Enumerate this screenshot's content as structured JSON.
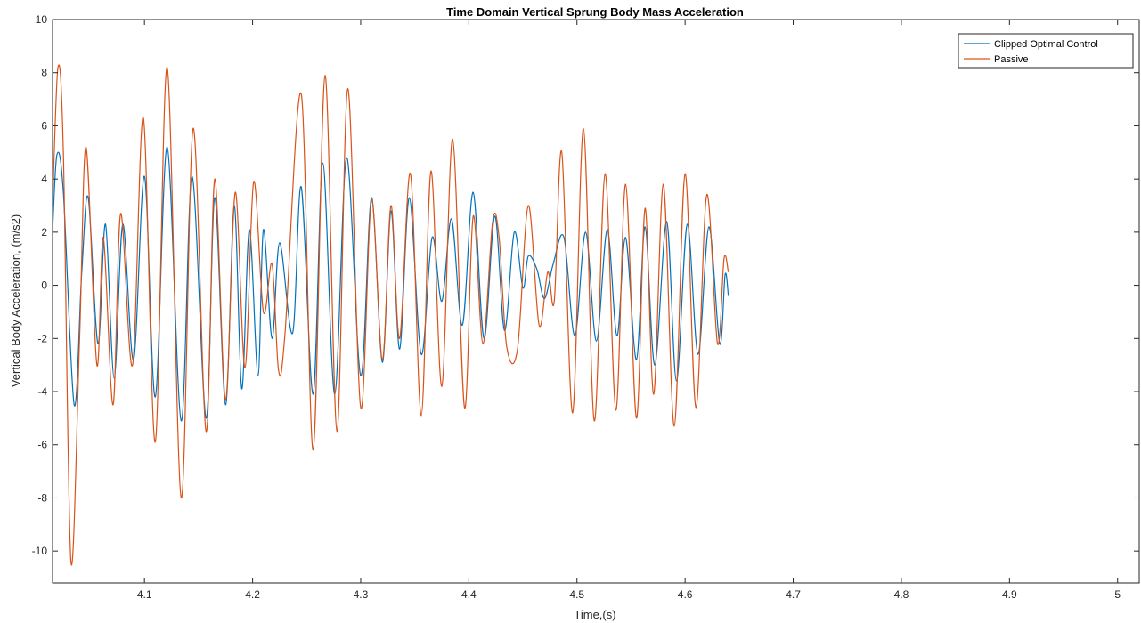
{
  "chart_data": {
    "type": "line",
    "title": "Time Domain Vertical Sprung Body Mass Acceleration",
    "xlabel": "Time,(s)",
    "ylabel": "Vertical Body Acceleration, (m/s2)",
    "xlim": [
      4.015,
      5.02
    ],
    "ylim": [
      -11.2,
      10
    ],
    "x_ticks": [
      4.1,
      4.2,
      4.3,
      4.4,
      4.5,
      4.6,
      4.7,
      4.8,
      4.9,
      5
    ],
    "x_tick_labels": [
      "4.1",
      "4.2",
      "4.3",
      "4.4",
      "4.5",
      "4.6",
      "4.7",
      "4.8",
      "4.9",
      "5"
    ],
    "y_ticks": [
      -10,
      -8,
      -6,
      -4,
      -2,
      0,
      2,
      4,
      6,
      8,
      10
    ],
    "y_tick_labels": [
      "-10",
      "-8",
      "-6",
      "-4",
      "-2",
      "0",
      "2",
      "4",
      "6",
      "8",
      "10"
    ],
    "grid": false,
    "legend_position": "top-right",
    "colors": {
      "clipped": "#0072bd",
      "passive": "#d95319"
    },
    "series": [
      {
        "name": "Clipped Optimal Control",
        "color": "#0072bd",
        "points": [
          [
            4.015,
            2.0
          ],
          [
            4.019,
            4.9
          ],
          [
            4.025,
            3.5
          ],
          [
            4.035,
            -4.5
          ],
          [
            4.042,
            0.5
          ],
          [
            4.048,
            3.3
          ],
          [
            4.057,
            -2.2
          ],
          [
            4.064,
            2.3
          ],
          [
            4.072,
            -3.5
          ],
          [
            4.08,
            2.3
          ],
          [
            4.09,
            -2.8
          ],
          [
            4.1,
            4.1
          ],
          [
            4.11,
            -4.2
          ],
          [
            4.121,
            5.2
          ],
          [
            4.134,
            -5.1
          ],
          [
            4.144,
            4.1
          ],
          [
            4.157,
            -5.0
          ],
          [
            4.165,
            3.3
          ],
          [
            4.175,
            -4.5
          ],
          [
            4.183,
            3.0
          ],
          [
            4.19,
            -3.9
          ],
          [
            4.197,
            2.1
          ],
          [
            4.205,
            -3.4
          ],
          [
            4.21,
            2.1
          ],
          [
            4.218,
            -2.0
          ],
          [
            4.225,
            1.6
          ],
          [
            4.237,
            -1.8
          ],
          [
            4.245,
            3.7
          ],
          [
            4.256,
            -4.1
          ],
          [
            4.265,
            4.6
          ],
          [
            4.276,
            -4.1
          ],
          [
            4.287,
            4.8
          ],
          [
            4.3,
            -3.4
          ],
          [
            4.31,
            3.3
          ],
          [
            4.32,
            -2.9
          ],
          [
            4.328,
            2.8
          ],
          [
            4.336,
            -2.4
          ],
          [
            4.345,
            3.3
          ],
          [
            4.356,
            -2.6
          ],
          [
            4.366,
            1.8
          ],
          [
            4.375,
            -0.6
          ],
          [
            4.384,
            2.5
          ],
          [
            4.394,
            -1.5
          ],
          [
            4.404,
            3.5
          ],
          [
            4.414,
            -2.0
          ],
          [
            4.424,
            2.6
          ],
          [
            4.433,
            -1.7
          ],
          [
            4.442,
            2.0
          ],
          [
            4.45,
            -0.1
          ],
          [
            4.455,
            1.1
          ],
          [
            4.463,
            0.6
          ],
          [
            4.47,
            -0.5
          ],
          [
            4.478,
            0.8
          ],
          [
            4.488,
            1.8
          ],
          [
            4.498,
            -1.9
          ],
          [
            4.508,
            2.0
          ],
          [
            4.518,
            -2.1
          ],
          [
            4.528,
            2.1
          ],
          [
            4.537,
            -1.9
          ],
          [
            4.545,
            1.8
          ],
          [
            4.555,
            -2.8
          ],
          [
            4.563,
            2.2
          ],
          [
            4.572,
            -3.0
          ],
          [
            4.583,
            2.4
          ],
          [
            4.592,
            -3.6
          ],
          [
            4.602,
            2.3
          ],
          [
            4.612,
            -2.6
          ],
          [
            4.622,
            2.2
          ],
          [
            4.632,
            -2.2
          ],
          [
            4.637,
            0.4
          ],
          [
            4.64,
            -0.4
          ]
        ]
      },
      {
        "name": "Passive",
        "color": "#d95319",
        "points": [
          [
            4.015,
            3.0
          ],
          [
            4.02,
            8.2
          ],
          [
            4.025,
            5.0
          ],
          [
            4.032,
            -10.4
          ],
          [
            4.04,
            -2.0
          ],
          [
            4.046,
            5.2
          ],
          [
            4.056,
            -3.0
          ],
          [
            4.062,
            1.8
          ],
          [
            4.071,
            -4.5
          ],
          [
            4.078,
            2.7
          ],
          [
            4.089,
            -3.0
          ],
          [
            4.099,
            6.3
          ],
          [
            4.11,
            -5.9
          ],
          [
            4.121,
            8.2
          ],
          [
            4.134,
            -8.0
          ],
          [
            4.145,
            5.9
          ],
          [
            4.157,
            -5.5
          ],
          [
            4.165,
            4.0
          ],
          [
            4.175,
            -4.3
          ],
          [
            4.184,
            3.5
          ],
          [
            4.193,
            -3.1
          ],
          [
            4.201,
            3.9
          ],
          [
            4.21,
            -1.0
          ],
          [
            4.218,
            0.8
          ],
          [
            4.224,
            -3.2
          ],
          [
            4.23,
            -1.8
          ],
          [
            4.245,
            7.2
          ],
          [
            4.256,
            -6.2
          ],
          [
            4.267,
            7.9
          ],
          [
            4.278,
            -5.5
          ],
          [
            4.288,
            7.4
          ],
          [
            4.3,
            -4.6
          ],
          [
            4.31,
            3.2
          ],
          [
            4.32,
            -2.8
          ],
          [
            4.328,
            3.0
          ],
          [
            4.336,
            -2.0
          ],
          [
            4.346,
            4.2
          ],
          [
            4.356,
            -4.9
          ],
          [
            4.365,
            4.3
          ],
          [
            4.375,
            -3.8
          ],
          [
            4.385,
            5.5
          ],
          [
            4.396,
            -4.6
          ],
          [
            4.404,
            2.6
          ],
          [
            4.413,
            -2.2
          ],
          [
            4.422,
            2.4
          ],
          [
            4.428,
            1.8
          ],
          [
            4.435,
            -2.3
          ],
          [
            4.445,
            -2.4
          ],
          [
            4.455,
            3.0
          ],
          [
            4.465,
            -1.5
          ],
          [
            4.473,
            0.5
          ],
          [
            4.479,
            -0.6
          ],
          [
            4.486,
            5.0
          ],
          [
            4.496,
            -4.8
          ],
          [
            4.506,
            5.9
          ],
          [
            4.516,
            -5.1
          ],
          [
            4.526,
            4.2
          ],
          [
            4.536,
            -4.7
          ],
          [
            4.545,
            3.8
          ],
          [
            4.555,
            -5.0
          ],
          [
            4.563,
            2.9
          ],
          [
            4.571,
            -4.1
          ],
          [
            4.58,
            3.8
          ],
          [
            4.59,
            -5.3
          ],
          [
            4.6,
            4.2
          ],
          [
            4.61,
            -4.6
          ],
          [
            4.62,
            3.4
          ],
          [
            4.63,
            -2.2
          ],
          [
            4.636,
            1.0
          ],
          [
            4.64,
            0.5
          ]
        ]
      }
    ]
  }
}
